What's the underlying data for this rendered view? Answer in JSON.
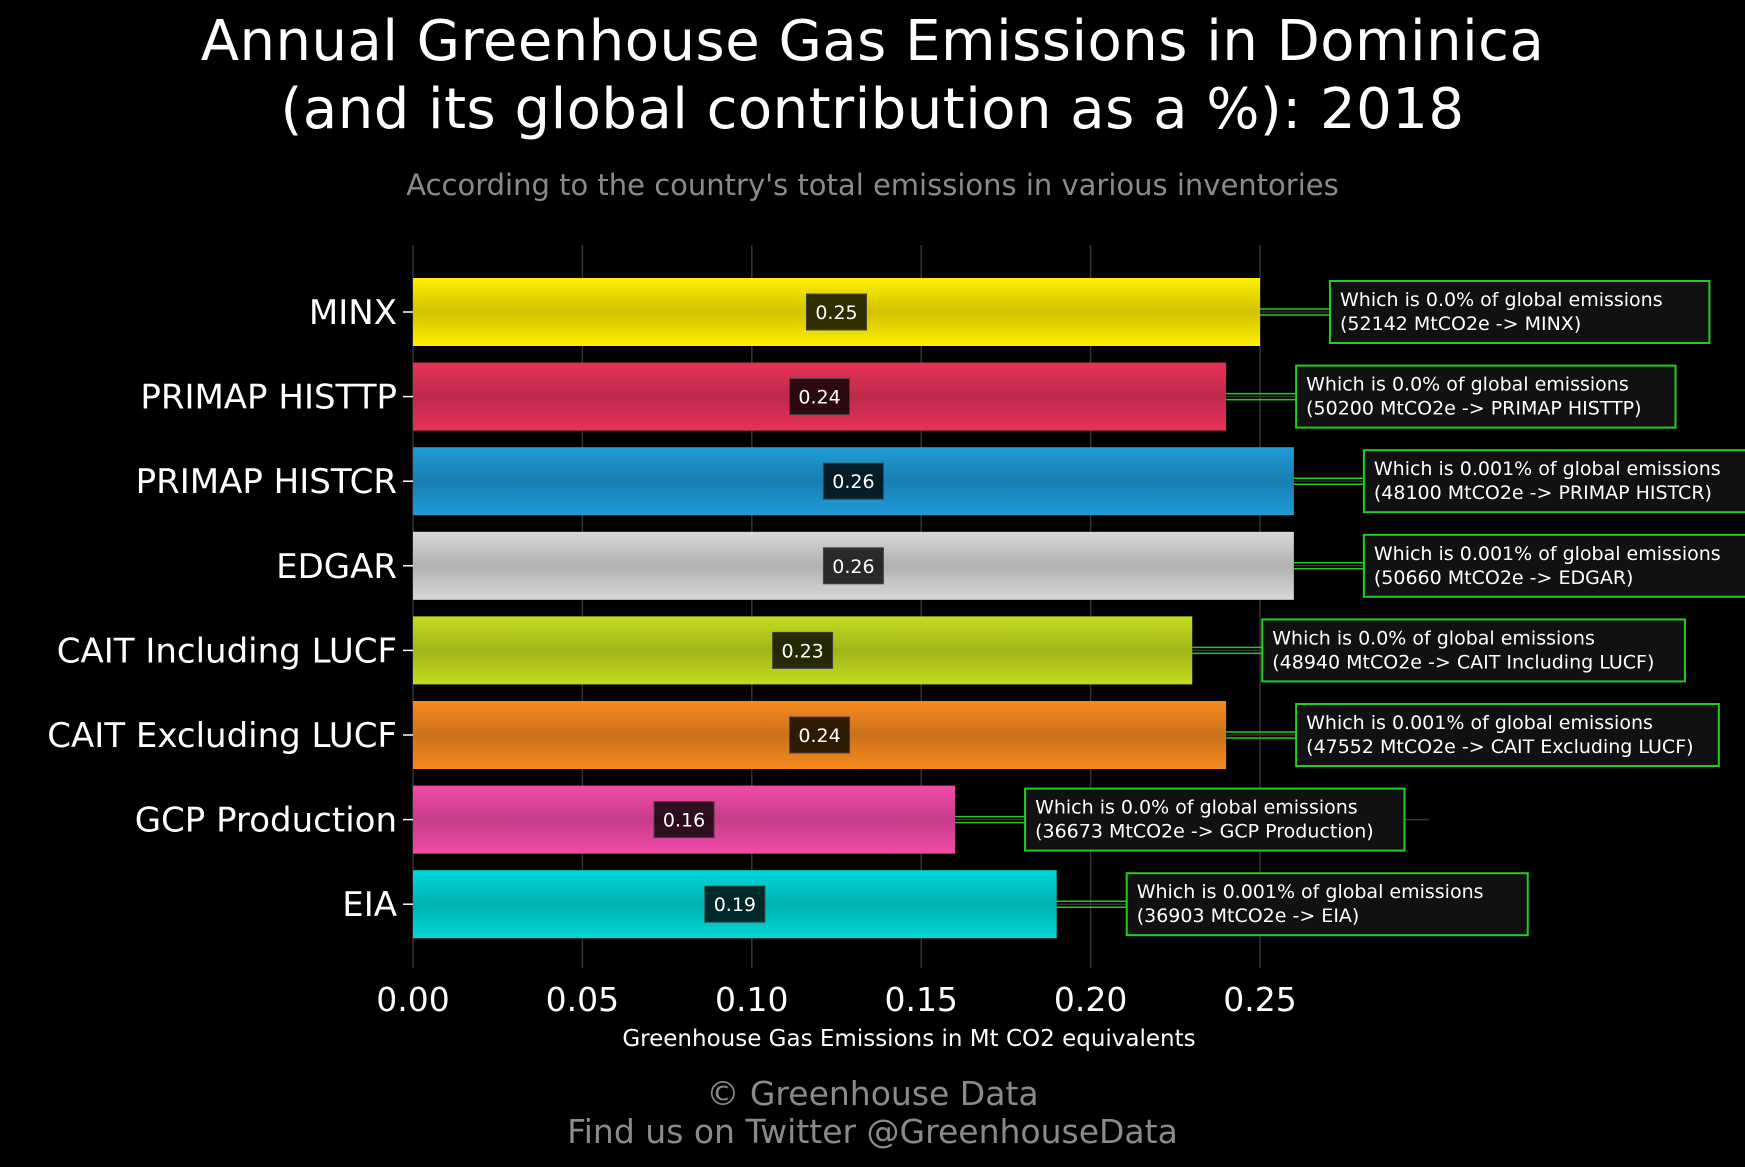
{
  "header": {
    "title_line1": "Annual Greenhouse Gas Emissions in Dominica",
    "title_line2": "(and its global contribution as a %): 2018",
    "subtitle": "According to the country's total emissions in various inventories"
  },
  "footer": {
    "credit_line1": "© Greenhouse Data",
    "credit_line2": "Find us on Twitter @GreenhouseData"
  },
  "colors": {
    "background": "#000000",
    "annotation_border": "#22cc22",
    "grid": "#333333"
  },
  "chart_data": {
    "type": "bar",
    "orientation": "horizontal",
    "categories": [
      "MINX",
      "PRIMAP HISTTP",
      "PRIMAP HISTCR",
      "EDGAR",
      "CAIT Including LUCF",
      "CAIT Excluding LUCF",
      "GCP Production",
      "EIA"
    ],
    "values": [
      0.25,
      0.24,
      0.26,
      0.26,
      0.23,
      0.24,
      0.16,
      0.19
    ],
    "value_labels": [
      "0.25",
      "0.24",
      "0.26",
      "0.26",
      "0.23",
      "0.24",
      "0.16",
      "0.19"
    ],
    "bar_colors": [
      "#ffee00",
      "#e8325a",
      "#1f9bd8",
      "#d8d8d8",
      "#c4dc1e",
      "#f78a1e",
      "#f24aa8",
      "#00d8d8"
    ],
    "annotations": [
      {
        "line1": "Which is 0.0% of global emissions",
        "line2": "(52142 MtCO2e -> MINX)"
      },
      {
        "line1": "Which is 0.0% of global emissions",
        "line2": "(50200 MtCO2e -> PRIMAP HISTTP)"
      },
      {
        "line1": "Which is 0.001% of global emissions",
        "line2": "(48100 MtCO2e -> PRIMAP HISTCR)"
      },
      {
        "line1": "Which is 0.001% of global emissions",
        "line2": "(50660 MtCO2e -> EDGAR)"
      },
      {
        "line1": "Which is 0.0% of global emissions",
        "line2": "(48940 MtCO2e -> CAIT Including LUCF)"
      },
      {
        "line1": "Which is 0.001% of global emissions",
        "line2": "(47552 MtCO2e -> CAIT Excluding LUCF)"
      },
      {
        "line1": "Which is 0.0% of global emissions",
        "line2": "(36673 MtCO2e -> GCP Production)"
      },
      {
        "line1": "Which is 0.001% of global emissions",
        "line2": "(36903 MtCO2e -> EIA)"
      }
    ],
    "xlabel": "Greenhouse Gas Emissions in Mt CO2 equivalents",
    "ylabel": "",
    "xlim": [
      0,
      0.28
    ],
    "xticks": [
      0.0,
      0.05,
      0.1,
      0.15,
      0.2,
      0.25
    ],
    "xtick_labels": [
      "0.00",
      "0.05",
      "0.10",
      "0.15",
      "0.20",
      "0.25"
    ],
    "grid": true,
    "legend": "none"
  }
}
